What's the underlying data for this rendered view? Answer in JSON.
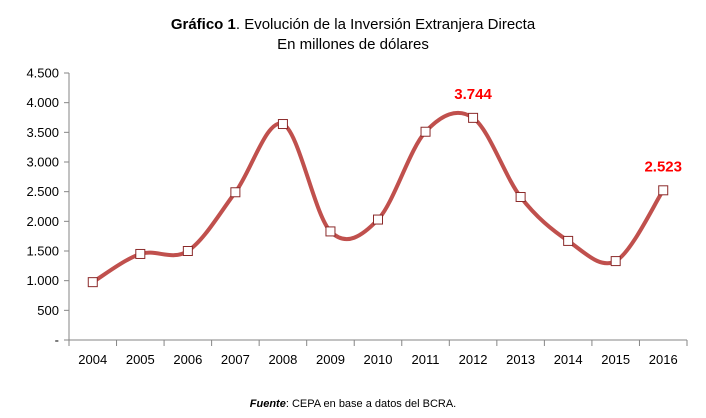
{
  "chart_data": {
    "type": "line",
    "title_bold": "Gráfico 1",
    "title_rest": ". Evolución de la Inversión Extranjera Directa",
    "subtitle": "En millones de dólares",
    "categories": [
      "2004",
      "2005",
      "2006",
      "2007",
      "2008",
      "2009",
      "2010",
      "2011",
      "2012",
      "2013",
      "2014",
      "2015",
      "2016"
    ],
    "values": [
      975,
      1450,
      1500,
      2490,
      3640,
      1830,
      2030,
      3510,
      3744,
      2410,
      1670,
      1330,
      2523
    ],
    "y_ticks": [
      "-",
      "500",
      "1.000",
      "1.500",
      "2.000",
      "2.500",
      "3.000",
      "3.500",
      "4.000",
      "4.500"
    ],
    "ylim": [
      0,
      4500
    ],
    "grid": false,
    "line_color": "#c0504d",
    "marker": "open-square",
    "annotations": [
      {
        "category": "2012",
        "label": "3.744",
        "color": "#ff0000"
      },
      {
        "category": "2016",
        "label": "2.523",
        "color": "#ff0000"
      }
    ],
    "source_label": "Fuente",
    "source_text": ": CEPA en base a datos del BCRA."
  }
}
